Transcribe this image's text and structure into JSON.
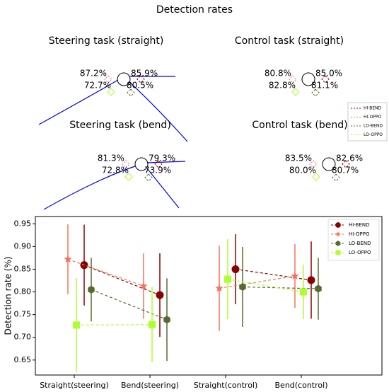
{
  "title": "Detection rates",
  "panels": [
    {
      "title": "Steering task (straight)",
      "labels": [
        "87.2%",
        "85.9%",
        "72.7%",
        "80.5%"
      ]
    },
    {
      "title": "Control task (straight)",
      "labels": [
        "80.8%",
        "85.0%",
        "82.8%",
        "81.1%"
      ]
    },
    {
      "title": "Steering task (bend)",
      "labels": [
        "81.3%",
        "79.3%",
        "72.8%",
        "73.9%"
      ]
    },
    {
      "title": "Control task (bend)",
      "labels": [
        "83.5%",
        "82.6%",
        "80.0%",
        "80.7%"
      ]
    }
  ],
  "chart_data": {
    "type": "errorbar",
    "ylabel": "Detection rate (%)",
    "categories": [
      "Straight(steering)",
      "Bend(steering)",
      "Straight(control)",
      "Bend(control)"
    ],
    "series": [
      {
        "name": "HI-BEND",
        "color": "#8b0000",
        "marker": "circle",
        "values": [
          0.859,
          0.793,
          0.85,
          0.826
        ],
        "errors": [
          0.089,
          0.092,
          0.077,
          0.085
        ]
      },
      {
        "name": "HI-OPPO",
        "color": "#f4735a",
        "marker": "star",
        "values": [
          0.872,
          0.813,
          0.808,
          0.835
        ],
        "errors": [
          0.077,
          0.072,
          0.094,
          0.07
        ]
      },
      {
        "name": "LO-BEND",
        "color": "#556b2f",
        "marker": "hexagon",
        "values": [
          0.805,
          0.739,
          0.811,
          0.807
        ],
        "errors": [
          0.07,
          0.091,
          0.088,
          0.068
        ]
      },
      {
        "name": "LO-OPPO",
        "color": "#adff2f",
        "marker": "square",
        "values": [
          0.727,
          0.728,
          0.828,
          0.8
        ],
        "errors": [
          0.103,
          0.083,
          0.088,
          0.06
        ]
      }
    ],
    "ylim": [
      0.617,
      0.966
    ],
    "yticks": [
      0.65,
      {
        "value": 0.7,
        "label": "0.70"
      },
      0.75,
      {
        "value": 0.8,
        "label": "0.80"
      },
      0.85,
      {
        "value": 0.9,
        "label": "0.90"
      },
      0.95
    ],
    "legend": "upper right"
  }
}
